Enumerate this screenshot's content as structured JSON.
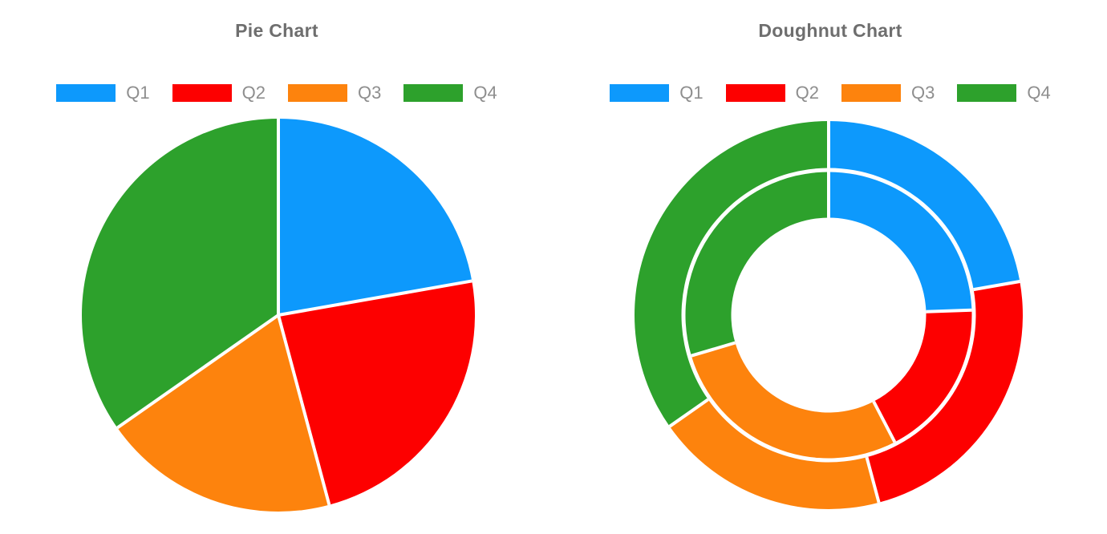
{
  "page": {
    "background": "#ffffff"
  },
  "palette": {
    "q1_blue": "#0d99fc",
    "q2_red": "#fd0000",
    "q3_orange": "#fd830d",
    "q4_green": "#2da12c",
    "title_text": "#6e6e6e",
    "legend_text": "#8e8e8e",
    "segment_border": "#ffffff"
  },
  "charts": [
    {
      "title": "Pie Chart",
      "legend": [
        "Q1",
        "Q2",
        "Q3",
        "Q4"
      ]
    },
    {
      "title": "Doughnut Chart",
      "legend": [
        "Q1",
        "Q2",
        "Q3",
        "Q4"
      ]
    }
  ],
  "chart_data": [
    {
      "type": "pie",
      "title": "Pie Chart",
      "categories": [
        "Q1",
        "Q2",
        "Q3",
        "Q4"
      ],
      "values": [
        16,
        17,
        14,
        25
      ],
      "percentages": [
        22.2,
        23.6,
        19.4,
        34.7
      ],
      "angles_deg": [
        80,
        85,
        70,
        125
      ],
      "colors": [
        "#0d99fc",
        "#fd0000",
        "#fd830d",
        "#2da12c"
      ],
      "start_angle": "12 o'clock",
      "direction": "clockwise",
      "legend_position": "top",
      "border_color": "#ffffff"
    },
    {
      "type": "doughnut",
      "title": "Doughnut Chart",
      "categories": [
        "Q1",
        "Q2",
        "Q3",
        "Q4"
      ],
      "series": [
        {
          "name": "outer ring",
          "values": [
            16,
            17,
            14,
            25
          ],
          "percentages": [
            22.2,
            23.6,
            19.4,
            34.7
          ],
          "angles_deg": [
            80,
            85,
            70,
            125
          ]
        },
        {
          "name": "inner ring",
          "values": [
            88,
            64.5,
            101,
            106.5
          ],
          "percentages": [
            24.4,
            17.9,
            28.1,
            29.6
          ],
          "angles_deg": [
            88,
            64.5,
            101,
            106.5
          ]
        }
      ],
      "colors": [
        "#0d99fc",
        "#fd0000",
        "#fd830d",
        "#2da12c"
      ],
      "start_angle": "12 o'clock",
      "direction": "clockwise",
      "legend_position": "top",
      "border_color": "#ffffff"
    }
  ]
}
